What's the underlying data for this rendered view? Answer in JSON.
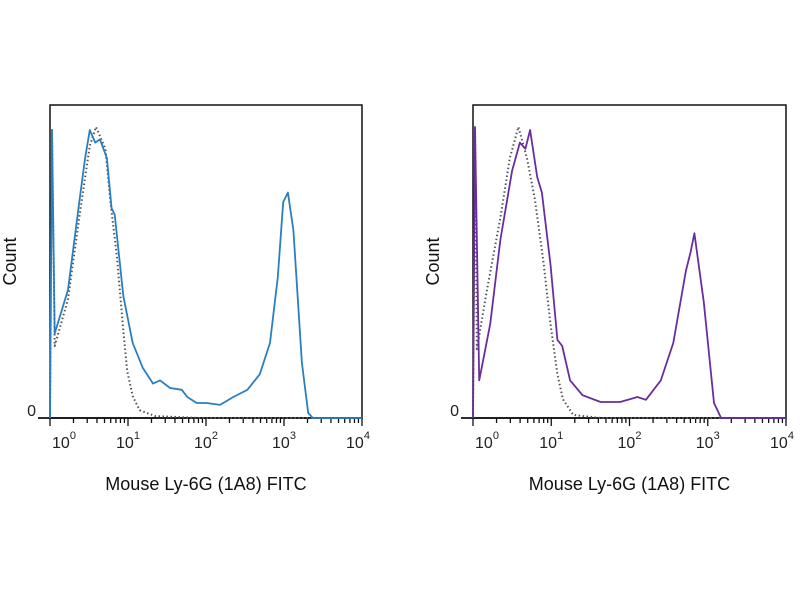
{
  "chart_data": [
    {
      "type": "line",
      "xscale": "log",
      "xlim": [
        1,
        10000
      ],
      "ylim": [
        0,
        100
      ],
      "xlabel": "Mouse Ly-6G (1A8) FITC",
      "ylabel": "Count",
      "y_tick_labels": [
        "0"
      ],
      "x_ticks": [
        1,
        10,
        100,
        1000,
        10000
      ],
      "x_tick_labels": [
        {
          "base": "10",
          "exp": "0"
        },
        {
          "base": "10",
          "exp": "1"
        },
        {
          "base": "10",
          "exp": "2"
        },
        {
          "base": "10",
          "exp": "3"
        },
        {
          "base": "10",
          "exp": "4"
        }
      ],
      "grid": false,
      "series": [
        {
          "style": "solid",
          "color": "#2a7fc1",
          "x": [
            1.0,
            1.06,
            1.15,
            1.7,
            2.4,
            2.82,
            3.24,
            3.8,
            4.37,
            5.37,
            6.17,
            6.76,
            8.71,
            11.5,
            15.5,
            20.9,
            25.7,
            34.7,
            49,
            57.5,
            75.9,
            102,
            151,
            224,
            339,
            490,
            661,
            832,
            977,
            1122,
            1318,
            1698,
            2042,
            2344,
            10000
          ],
          "y": [
            0,
            92,
            27,
            41,
            70,
            83,
            92,
            88,
            89,
            83,
            67,
            65,
            39,
            24,
            16,
            11,
            12,
            9.6,
            9,
            6.7,
            4.8,
            4.8,
            4.2,
            6.7,
            9,
            14,
            24,
            45,
            69,
            72,
            60,
            17.6,
            1.6,
            0,
            0
          ]
        },
        {
          "style": "dotted",
          "color": "#555555",
          "x": [
            1.0,
            1.06,
            1.15,
            1.7,
            2.4,
            3.24,
            3.89,
            5.13,
            5.89,
            7.24,
            8.71,
            9.77,
            11.5,
            14.1,
            22.4,
            83.2,
            10000
          ],
          "y": [
            0,
            92,
            23,
            38,
            65,
            87,
            93,
            86,
            70,
            51,
            28,
            15,
            7,
            2.5,
            0.6,
            0,
            0
          ]
        }
      ]
    },
    {
      "type": "line",
      "xscale": "log",
      "xlim": [
        1,
        10000
      ],
      "ylim": [
        0,
        100
      ],
      "xlabel": "Mouse Ly-6G (1A8) FITC",
      "ylabel": "Count",
      "y_tick_labels": [
        "0"
      ],
      "x_ticks": [
        1,
        10,
        100,
        1000,
        10000
      ],
      "x_tick_labels": [
        {
          "base": "10",
          "exp": "0"
        },
        {
          "base": "10",
          "exp": "1"
        },
        {
          "base": "10",
          "exp": "2"
        },
        {
          "base": "10",
          "exp": "3"
        },
        {
          "base": "10",
          "exp": "4"
        }
      ],
      "grid": false,
      "series": [
        {
          "style": "solid",
          "color": "#6a2d9f",
          "x": [
            1.0,
            1.06,
            1.2,
            1.66,
            2.24,
            3.16,
            3.98,
            4.68,
            5.37,
            6.61,
            7.59,
            9.77,
            12.0,
            13.8,
            17.4,
            25.1,
            42.7,
            75.9,
            126,
            162,
            251,
            363,
            525,
            603,
            676,
            891,
            1202,
            1479,
            10000
          ],
          "y": [
            0,
            93,
            12,
            30,
            57,
            79,
            88,
            86,
            92,
            77,
            72,
            49,
            25,
            23,
            12,
            7.3,
            5.1,
            5.1,
            6.7,
            5.8,
            12,
            24,
            47,
            53,
            59,
            37,
            4.8,
            0,
            0
          ]
        },
        {
          "style": "dotted",
          "color": "#555555",
          "x": [
            1.0,
            1.06,
            1.12,
            1.51,
            2.24,
            2.95,
            3.8,
            4.9,
            6.17,
            7.94,
            9.77,
            12.0,
            14.1,
            19.1,
            42.7,
            10000
          ],
          "y": [
            0,
            93,
            22,
            41,
            64,
            83,
            93,
            83,
            70,
            50,
            30,
            14,
            6,
            1,
            0,
            0
          ]
        }
      ]
    }
  ]
}
